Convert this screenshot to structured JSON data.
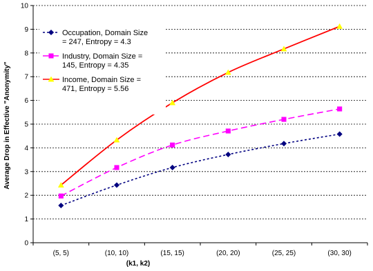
{
  "chart_data": {
    "type": "line",
    "title": "",
    "xlabel": "(k1, k2)",
    "ylabel": "Average Drop in Effective \"Anonymity\"",
    "categories": [
      "(5, 5)",
      "(10, 10)",
      "(15, 15)",
      "(20, 20)",
      "(25, 25)",
      "(30, 30)"
    ],
    "ylim": [
      0,
      10
    ],
    "yticks": [
      0,
      1,
      2,
      3,
      4,
      5,
      6,
      7,
      8,
      9,
      10
    ],
    "grid": "horizontal dashed",
    "legend_position": "top-left",
    "series": [
      {
        "name": "Occupation, Domain Size = 247, Entropy = 4.3",
        "legend_lines": [
          "Occupation, Domain Size",
          "= 247, Entropy = 4.3"
        ],
        "values": [
          1.57,
          2.43,
          3.17,
          3.72,
          4.18,
          4.58
        ],
        "color": "#000080",
        "marker": "diamond",
        "dash": "3,3"
      },
      {
        "name": "Industry, Domain Size = 145, Entropy = 4.35",
        "legend_lines": [
          "Industry, Domain Size =",
          "145, Entropy = 4.35"
        ],
        "values": [
          1.97,
          3.17,
          4.12,
          4.71,
          5.2,
          5.64
        ],
        "color": "#ff00ff",
        "marker": "square",
        "dash": "9,5"
      },
      {
        "name": "Income, Domain Size = 471, Entropy = 5.56",
        "legend_lines": [
          "Income, Domain Size =",
          "471, Entropy = 5.56"
        ],
        "values": [
          2.43,
          4.33,
          5.9,
          7.18,
          8.17,
          9.12
        ],
        "color": "#ff0000",
        "marker": "triangle",
        "marker_color": "#ffff00",
        "dash": ""
      }
    ]
  }
}
